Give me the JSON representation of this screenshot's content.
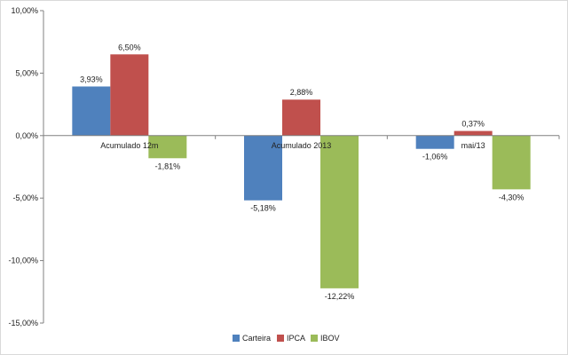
{
  "chart_data": {
    "type": "bar",
    "categories": [
      "Acumulado 12m",
      "Acumulado 2013",
      "mai/13"
    ],
    "series": [
      {
        "name": "Carteira",
        "values": [
          3.93,
          -5.18,
          -1.06
        ],
        "labels": [
          "3,93%",
          "-5,18%",
          "-1,06%"
        ],
        "color": "#4f81bd"
      },
      {
        "name": "IPCA",
        "values": [
          6.5,
          2.88,
          0.37
        ],
        "labels": [
          "6,50%",
          "2,88%",
          "0,37%"
        ],
        "color": "#c0504d"
      },
      {
        "name": "IBOV",
        "values": [
          -1.81,
          -12.22,
          -4.3
        ],
        "labels": [
          "-1,81%",
          "-12,22%",
          "-4,30%"
        ],
        "color": "#9bbb59"
      }
    ],
    "ylim": [
      -15,
      10
    ],
    "yticks": [
      10,
      5,
      0,
      -5,
      -10,
      -15
    ],
    "ytick_labels": [
      "10,00%",
      "5,00%",
      "0,00%",
      "-5,00%",
      "-10,00%",
      "-15,00%"
    ],
    "grid": false,
    "legend_position": "bottom",
    "title": "",
    "xlabel": "",
    "ylabel": ""
  }
}
